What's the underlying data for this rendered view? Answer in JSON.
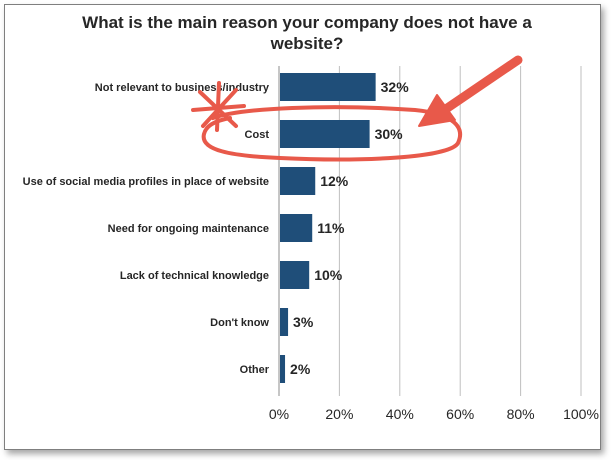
{
  "colors": {
    "bar": "#1f4e79",
    "gridline": "#bfbfbf",
    "annotation": "#e8594a",
    "frame": "#7f7f7f"
  },
  "chart_data": {
    "type": "bar",
    "orientation": "horizontal",
    "title_lines": [
      "What is the main reason your company does not have a",
      "website?"
    ],
    "categories": [
      "Not relevant to business/industry",
      "Cost",
      "Use of social media profiles in place of website",
      "Need for ongoing maintenance",
      "Lack of technical knowledge",
      "Don't know",
      "Other"
    ],
    "values": [
      32,
      30,
      12,
      11,
      10,
      3,
      2
    ],
    "value_labels": [
      "32%",
      "30%",
      "12%",
      "11%",
      "10%",
      "3%",
      "2%"
    ],
    "xlim": [
      0,
      100
    ],
    "xticks": [
      0,
      20,
      40,
      60,
      80,
      100
    ],
    "xtick_labels": [
      "0%",
      "20%",
      "40%",
      "60%",
      "80%",
      "100%"
    ],
    "grid": true,
    "legend": "none",
    "annotations": [
      "Cost category circled with a red arrow pointing at it and an asterisk beside it"
    ]
  }
}
